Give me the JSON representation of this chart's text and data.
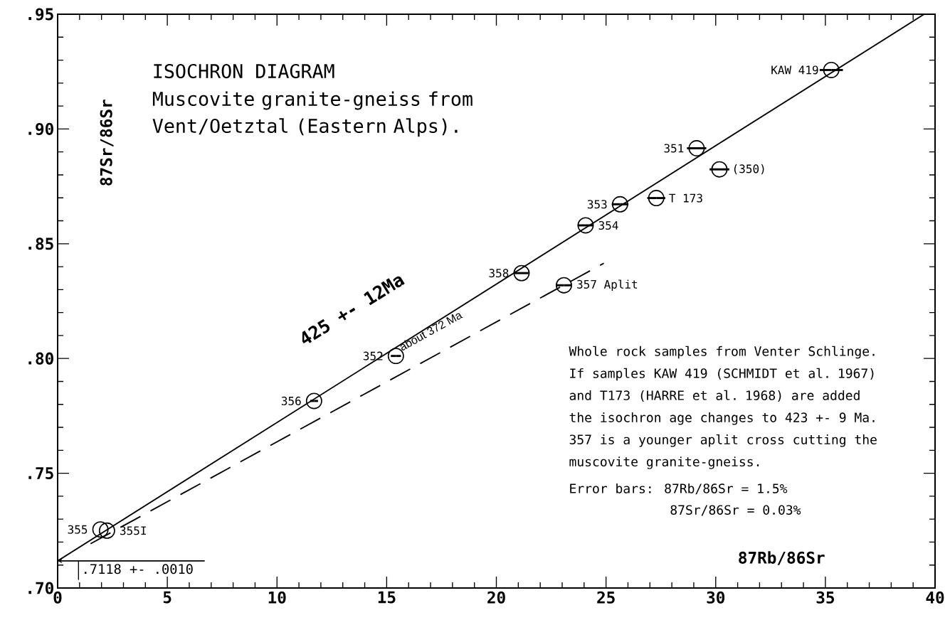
{
  "chart_data": {
    "type": "scatter",
    "title": "ISOCHRON DIAGRAM",
    "subtitle": "Muscovite granite-gneiss from Vent/Oetztal (Eastern Alps).",
    "xlabel": "87Rb/86Sr",
    "ylabel": "87Sr/86Sr",
    "grid": false,
    "xlim": [
      0,
      40
    ],
    "ylim": [
      0.7,
      0.95
    ],
    "xticks": [
      0,
      5,
      10,
      15,
      20,
      25,
      30,
      35,
      40
    ],
    "yticks": [
      {
        "value": 0.7,
        "label": ".70"
      },
      {
        "value": 0.75,
        "label": ".75"
      },
      {
        "value": 0.8,
        "label": ".80"
      },
      {
        "value": 0.85,
        "label": ".85"
      },
      {
        "value": 0.9,
        "label": ".90"
      },
      {
        "value": 0.95,
        "label": ".95"
      }
    ],
    "series": [
      {
        "color": "#000000",
        "marker": "circle",
        "x": [
          35.27,
          29.13,
          30.17,
          27.29,
          25.64,
          24.07,
          21.15,
          23.08,
          15.42,
          11.69,
          1.95,
          2.25
        ],
        "values": [
          0.9257,
          0.8916,
          0.8824,
          0.8699,
          0.8672,
          0.858,
          0.8372,
          0.8319,
          0.8011,
          0.7815,
          0.7255,
          0.725
        ],
        "xerrors": [
          0.53,
          0.44,
          0.45,
          0.41,
          0.38,
          0.36,
          0.32,
          0.35,
          0.23,
          0.18,
          null,
          null
        ]
      },
      {
        "type": "line",
        "color": "#000000",
        "line_style": "solid",
        "x": [
          0,
          39.5
        ],
        "values": [
          0.7118,
          0.95
        ]
      },
      {
        "type": "line",
        "color": "#000000",
        "line_style": "dashed",
        "x": [
          1.5,
          24.9
        ],
        "values": [
          0.7193,
          0.8415
        ]
      }
    ],
    "annotations": [
      {
        "text": "KAW 419",
        "x": 35.27,
        "y": 0.9257
      },
      {
        "text": "351",
        "x": 29.13,
        "y": 0.8916
      },
      {
        "text": "(350)",
        "x": 30.17,
        "y": 0.8824
      },
      {
        "text": "T 173",
        "x": 27.29,
        "y": 0.8699
      },
      {
        "text": "353",
        "x": 25.64,
        "y": 0.8672
      },
      {
        "text": "354",
        "x": 24.07,
        "y": 0.858
      },
      {
        "text": "358",
        "x": 21.15,
        "y": 0.8372
      },
      {
        "text": "357 Aplit",
        "x": 23.08,
        "y": 0.8319
      },
      {
        "text": "352",
        "x": 15.42,
        "y": 0.8011
      },
      {
        "text": "356",
        "x": 11.69,
        "y": 0.7815
      },
      {
        "text": "355",
        "x": 1.95,
        "y": 0.7255
      },
      {
        "text": "355I",
        "x": 2.25,
        "y": 0.725
      },
      "425 +-  12Ma",
      "about 372 Ma",
      {
        "text": ".7118 +- .0010",
        "x": 0,
        "y": 0.7118
      },
      "Whole rock samples from Venter Schlinge. If samples KAW 419 (SCHMIDT et al. 1967) and T173 (HARRE et al. 1968) are added the isochron age changes to 423 +- 9 Ma. 357 is a younger aplit cross cutting the muscovite granite-gneiss.",
      "Error bars:  87Rb/86Sr = 1.5%",
      "87Sr/86Sr = 0.03%"
    ]
  }
}
